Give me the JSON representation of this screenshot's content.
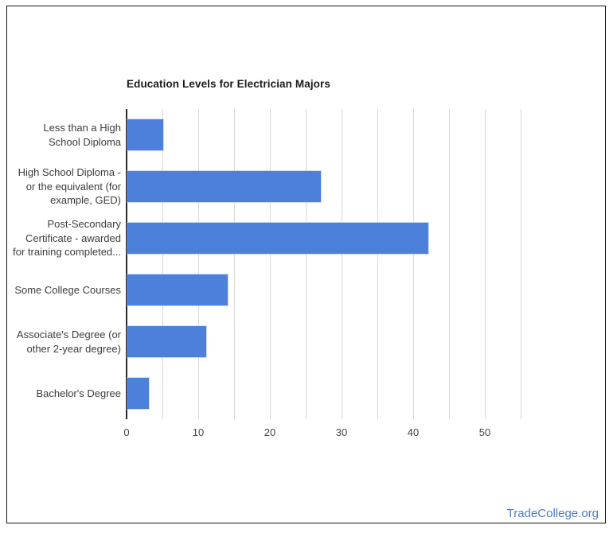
{
  "frame": {
    "border_color": "#111111",
    "background": "#ffffff"
  },
  "chart_data": {
    "type": "bar",
    "orientation": "horizontal",
    "title": "Education Levels for Electrician Majors",
    "categories": [
      "Less than a High School Diploma",
      "High School Diploma - or the equivalent (for example, GED)",
      "Post-Secondary Certificate - awarded for training completed...",
      "Some College Courses",
      "Associate's Degree (or other 2-year degree)",
      "Bachelor's Degree"
    ],
    "label_lines": [
      [
        "Less than a High",
        "School Diploma"
      ],
      [
        "High School Diploma -",
        "or the equivalent (for",
        "example, GED)"
      ],
      [
        "Post-Secondary",
        "Certificate - awarded",
        "for training completed..."
      ],
      [
        "Some College Courses"
      ],
      [
        "Associate's Degree (or",
        "other 2-year degree)"
      ],
      [
        "Bachelor's Degree"
      ]
    ],
    "values": [
      5,
      27,
      42,
      14,
      11,
      3
    ],
    "xlabel": "",
    "ylabel": "",
    "xlim": [
      0,
      55
    ],
    "x_ticks": [
      0,
      10,
      20,
      30,
      40,
      50
    ],
    "gridline_step": 5,
    "grid": true,
    "legend": "none",
    "bar_color": "#4d80db",
    "gridline_color": "#d9d9d9",
    "axis_line_color": "#2b2b2b",
    "title_color": "#1a1a1a",
    "tick_label_color": "#444444",
    "category_label_color": "#3c3c3c"
  },
  "footer": {
    "link_text": "TradeCollege.org",
    "link_color": "#4a7bc8"
  }
}
